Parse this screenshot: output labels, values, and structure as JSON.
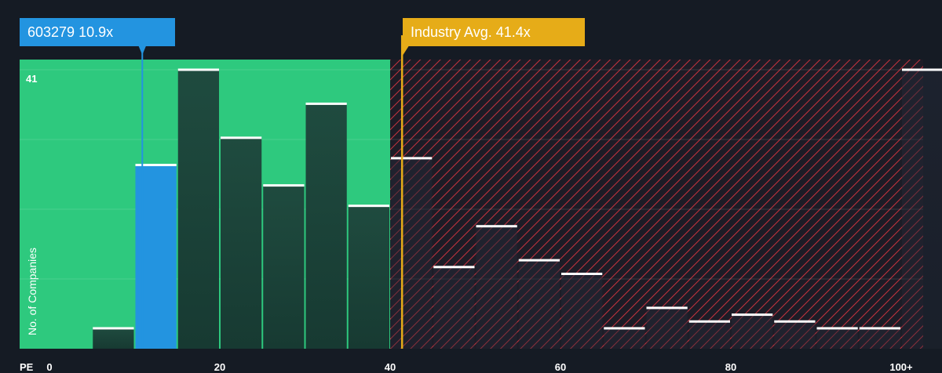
{
  "chart_data": {
    "type": "bar",
    "x_axis_label": "PE",
    "y_axis_label": "No. of Companies",
    "y_max_label": "41",
    "x_ticks": [
      "0",
      "20",
      "40",
      "60",
      "80",
      "100+"
    ],
    "bins": [
      {
        "x0": 5,
        "x1": 10,
        "count": 3
      },
      {
        "x0": 10,
        "x1": 15,
        "count": 27
      },
      {
        "x0": 15,
        "x1": 20,
        "count": 41
      },
      {
        "x0": 20,
        "x1": 25,
        "count": 31
      },
      {
        "x0": 25,
        "x1": 30,
        "count": 24
      },
      {
        "x0": 30,
        "x1": 35,
        "count": 36
      },
      {
        "x0": 35,
        "x1": 40,
        "count": 21
      },
      {
        "x0": 40,
        "x1": 45,
        "count": 28
      },
      {
        "x0": 45,
        "x1": 50,
        "count": 12
      },
      {
        "x0": 50,
        "x1": 55,
        "count": 18
      },
      {
        "x0": 55,
        "x1": 60,
        "count": 13
      },
      {
        "x0": 60,
        "x1": 65,
        "count": 11
      },
      {
        "x0": 65,
        "x1": 70,
        "count": 3
      },
      {
        "x0": 70,
        "x1": 75,
        "count": 6
      },
      {
        "x0": 75,
        "x1": 80,
        "count": 4
      },
      {
        "x0": 80,
        "x1": 85,
        "count": 5
      },
      {
        "x0": 85,
        "x1": 90,
        "count": 4
      },
      {
        "x0": 90,
        "x1": 95,
        "count": 3
      },
      {
        "x0": 95,
        "x1": 100,
        "count": 3
      },
      {
        "x0": 100,
        "x1": 105,
        "count": 41
      }
    ],
    "company": {
      "label": "603279 10.9x",
      "pe": 10.9,
      "bin_index": 1
    },
    "industry": {
      "label": "Industry Avg. 41.4x",
      "pe": 41.4
    },
    "fair_range_max": 40,
    "ylim": [
      0,
      41
    ],
    "grid": true,
    "colors": {
      "background": "#151b24",
      "fair_zone": "#2ec97e",
      "overvalued_hatch": "#c8333f",
      "company": "#2394e0",
      "industry": "#e6ac18",
      "bar": "#1e4a3e",
      "bar_cap": "#ffffff"
    }
  }
}
